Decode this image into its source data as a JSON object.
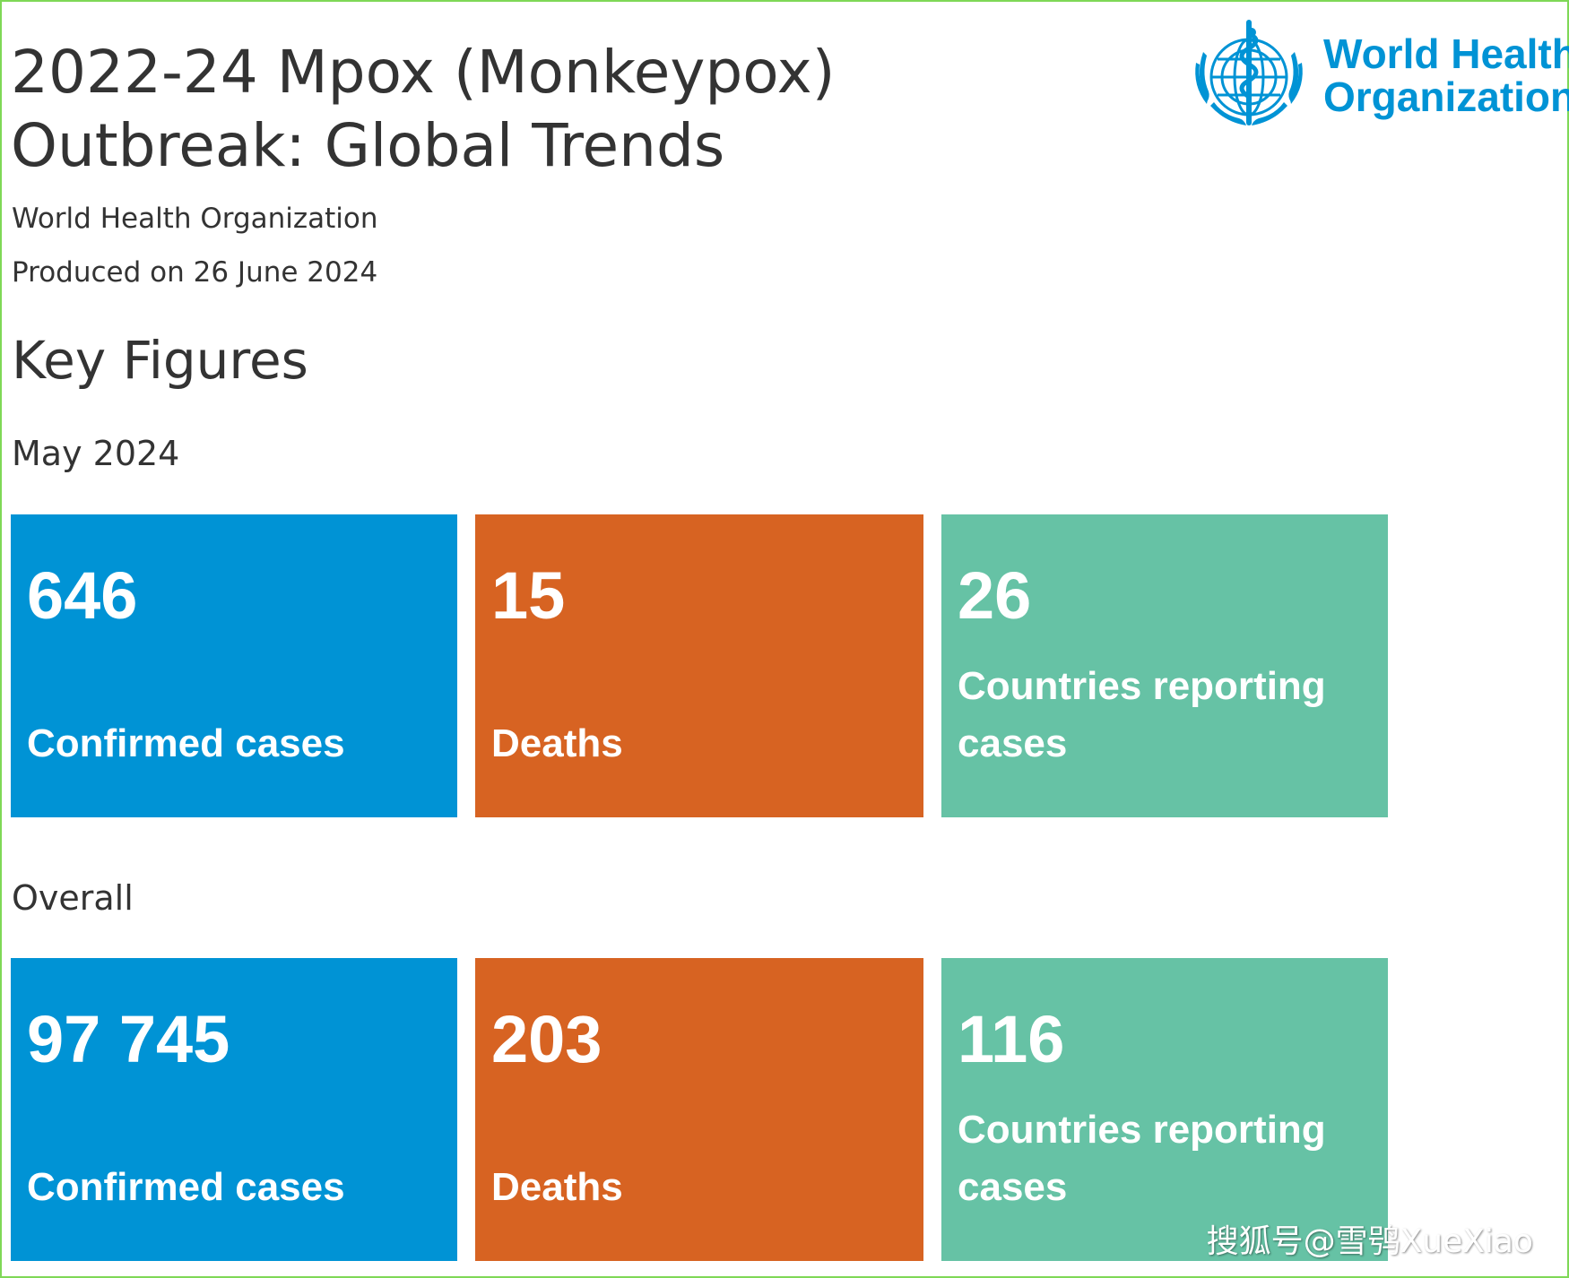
{
  "header": {
    "title": "2022-24 Mpox (Monkeypox) Outbreak: Global Trends",
    "organization": "World Health Organization",
    "produced": "Produced on 26 June 2024"
  },
  "logo": {
    "line1": "World Health",
    "line2": "Organization",
    "icon": "who-emblem-icon"
  },
  "key_figures": {
    "title": "Key Figures",
    "may": {
      "label": "May 2024",
      "cards": [
        {
          "value": "646",
          "label": "Confirmed cases",
          "color": "#0093d5"
        },
        {
          "value": "15",
          "label": "Deaths",
          "color": "#d76322"
        },
        {
          "value": "26",
          "label": "Countries reporting cases",
          "color": "#66c2a5"
        }
      ]
    },
    "overall": {
      "label": "Overall",
      "cards": [
        {
          "value": "97 745",
          "label": "Confirmed cases",
          "color": "#0093d5"
        },
        {
          "value": "203",
          "label": "Deaths",
          "color": "#d76322"
        },
        {
          "value": "116",
          "label": "Countries reporting cases",
          "color": "#66c2a5"
        }
      ]
    }
  },
  "watermark": "搜狐号@雪鸮XueXiao",
  "colors": {
    "accent_blue": "#0093d5",
    "accent_orange": "#d76322",
    "accent_green": "#66c2a5",
    "frame_border": "#7fd857"
  }
}
